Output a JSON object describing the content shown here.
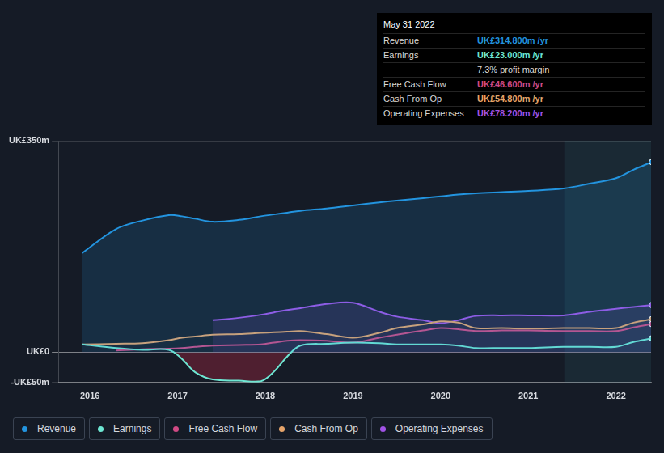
{
  "chart_data": {
    "type": "line",
    "x": [
      2015.91,
      2016.3,
      2016.6,
      2016.9,
      2017.05,
      2017.2,
      2017.4,
      2017.7,
      2017.95,
      2018.1,
      2018.25,
      2018.4,
      2018.7,
      2019.0,
      2019.3,
      2019.5,
      2019.8,
      2020.0,
      2020.2,
      2020.4,
      2020.7,
      2021.0,
      2021.4,
      2021.7,
      2022.0,
      2022.2,
      2022.41
    ],
    "series": [
      {
        "name": "Revenue",
        "color": "#2394df",
        "values": [
          164,
          204,
          218,
          227,
          225,
          221,
          216,
          219,
          225,
          228,
          231,
          234,
          238,
          243,
          248,
          251,
          255,
          258,
          261,
          263,
          265,
          267,
          271,
          279,
          288,
          302,
          314.8
        ]
      },
      {
        "name": "Earnings",
        "color": "#6ee6d2",
        "values": [
          13,
          7,
          4,
          4,
          -11,
          -33,
          -45,
          -47,
          -48,
          -32,
          -7,
          11,
          14,
          16,
          15,
          13,
          13,
          13,
          11,
          7,
          7,
          7,
          9,
          9,
          9,
          17,
          23.0
        ]
      },
      {
        "name": "Free Cash Flow",
        "color": "#d04a84",
        "values": [
          null,
          3,
          5,
          6,
          7,
          9,
          11,
          12,
          13,
          16,
          19,
          20,
          19,
          16,
          24,
          29,
          36,
          40,
          38,
          35,
          36,
          36,
          35,
          35,
          35,
          41,
          46.6
        ]
      },
      {
        "name": "Cash From Op",
        "color": "#e6a46a",
        "values": [
          13,
          14,
          15,
          20,
          24,
          26,
          29,
          30,
          32,
          33,
          34,
          35,
          30,
          24,
          32,
          40,
          46,
          51,
          49,
          40,
          40,
          39,
          40,
          40,
          40,
          49,
          54.8
        ]
      },
      {
        "name": "Operating Expenses",
        "color": "#a153e6",
        "values": [
          null,
          null,
          null,
          null,
          null,
          null,
          53,
          57,
          62,
          66,
          70,
          73,
          80,
          82,
          67,
          59,
          53,
          48,
          53,
          60,
          61,
          61,
          61,
          67,
          72,
          75,
          78.2
        ]
      }
    ],
    "xlim": [
      2015.64,
      2022.4
    ],
    "xticks": [
      2016,
      2017,
      2018,
      2019,
      2020,
      2021,
      2022
    ],
    "ylim": [
      -50,
      350
    ],
    "yticks": [
      {
        "value": -50,
        "label": "-UK£50m"
      },
      {
        "value": 0,
        "label": "UK£0"
      },
      {
        "value": 350,
        "label": "UK£350m"
      }
    ],
    "grid": true,
    "shaded_region": [
      2021.41,
      2022.4
    ],
    "info_box": {
      "title": "May 31 2022",
      "rows": [
        {
          "label": "Revenue",
          "value": "UK£314.800m /yr",
          "color": "#2394df"
        },
        {
          "label": "Earnings",
          "value": "UK£23.000m /yr",
          "color": "#6ee6d2"
        },
        {
          "value": "7.3% profit margin",
          "color": "#d8d8d8"
        },
        {
          "label": "Free Cash Flow",
          "value": "UK£46.600m /yr",
          "color": "#d04a84"
        },
        {
          "label": "Cash From Op",
          "value": "UK£54.800m /yr",
          "color": "#e6a46a"
        },
        {
          "label": "Operating Expenses",
          "value": "UK£78.200m /yr",
          "color": "#a153e6"
        }
      ]
    }
  }
}
